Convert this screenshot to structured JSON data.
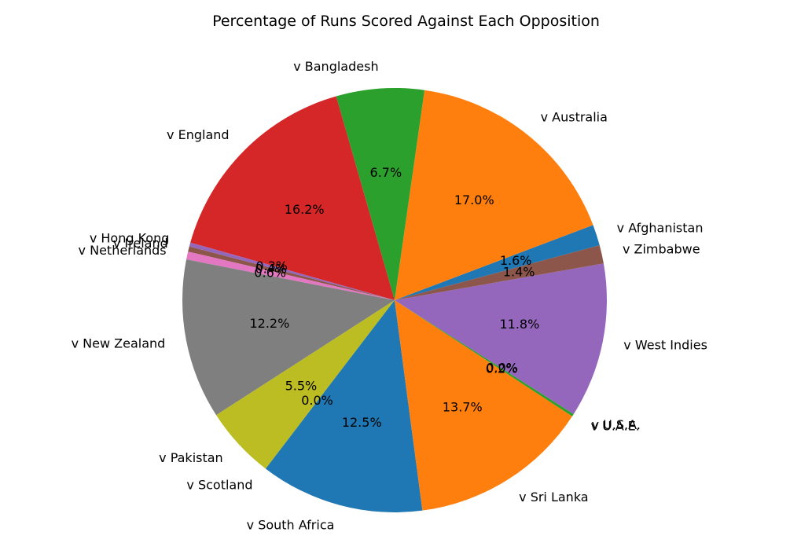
{
  "chart_data": {
    "type": "pie",
    "title": "Percentage of Runs Scored Against Each Opposition",
    "slices": [
      {
        "label": "v Afghanistan",
        "value": 1.6,
        "pct": "1.6%",
        "color": "#1f77b4"
      },
      {
        "label": "v Australia",
        "value": 17.0,
        "pct": "17.0%",
        "color": "#ff7f0e"
      },
      {
        "label": "v Bangladesh",
        "value": 6.7,
        "pct": "6.7%",
        "color": "#2ca02c"
      },
      {
        "label": "v England",
        "value": 16.2,
        "pct": "16.2%",
        "color": "#d62728"
      },
      {
        "label": "v Hong Kong",
        "value": 0.3,
        "pct": "0.3%",
        "color": "#9467bd"
      },
      {
        "label": "v Ireland",
        "value": 0.4,
        "pct": "0.4%",
        "color": "#8c564b"
      },
      {
        "label": "v Netherlands",
        "value": 0.6,
        "pct": "0.6%",
        "color": "#e377c2"
      },
      {
        "label": "v New Zealand",
        "value": 12.2,
        "pct": "12.2%",
        "color": "#7f7f7f"
      },
      {
        "label": "v Pakistan",
        "value": 5.5,
        "pct": "5.5%",
        "color": "#bcbd22"
      },
      {
        "label": "v Scotland",
        "value": 0.0,
        "pct": "0.0%",
        "color": "#17becf"
      },
      {
        "label": "v South Africa",
        "value": 12.5,
        "pct": "12.5%",
        "color": "#1f77b4"
      },
      {
        "label": "v Sri Lanka",
        "value": 13.7,
        "pct": "13.7%",
        "color": "#ff7f0e"
      },
      {
        "label": "v U.A.E.",
        "value": 0.2,
        "pct": "0.2%",
        "color": "#2ca02c"
      },
      {
        "label": "v U.S.A.",
        "value": 0.0,
        "pct": "0.0%",
        "color": "#d62728"
      },
      {
        "label": "v West Indies",
        "value": 11.8,
        "pct": "11.8%",
        "color": "#9467bd"
      },
      {
        "label": "v Zimbabwe",
        "value": 1.4,
        "pct": "1.4%",
        "color": "#8c564b"
      }
    ],
    "start_angle_deg": 15,
    "direction": "counterclockwise",
    "legend": "none"
  }
}
